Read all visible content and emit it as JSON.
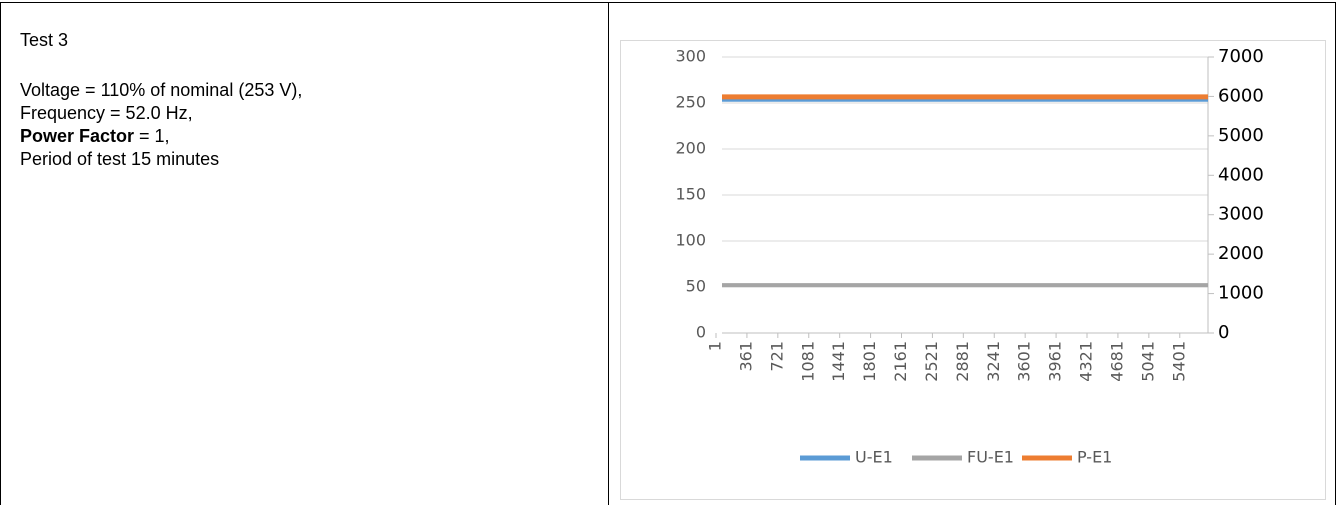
{
  "cell_text": {
    "title": "Test 3",
    "lines": [
      "Voltage = 110% of nominal (253 V),",
      "Frequency = 52.0 Hz,",
      {
        "bold": "Power Factor",
        "rest": " = 1,"
      },
      "Period of test 15 minutes"
    ]
  },
  "chart_data": {
    "type": "line",
    "x": [
      1,
      5660
    ],
    "xlim": [
      1,
      5660
    ],
    "xticks": [
      1,
      361,
      721,
      1081,
      1441,
      1801,
      2161,
      2521,
      2881,
      3241,
      3601,
      3961,
      4321,
      4681,
      5041,
      5401
    ],
    "ylim": [
      0,
      300
    ],
    "yticks": [
      0,
      50,
      100,
      150,
      200,
      250,
      300
    ],
    "y2lim": [
      0,
      7000
    ],
    "y2ticks": [
      0,
      1000,
      2000,
      3000,
      4000,
      5000,
      6000,
      7000
    ],
    "grid": true,
    "legend": "bottom",
    "series": [
      {
        "name": "U-E1",
        "color": "#5b9bd5",
        "values": [
          253,
          253
        ]
      },
      {
        "name": "FU-E1",
        "color": "#a5a5a5",
        "values": [
          52,
          52
        ]
      },
      {
        "name": "P-E1",
        "color": "#ed7d31",
        "values": [
          5990,
          5990
        ],
        "axis": "y2"
      }
    ]
  }
}
